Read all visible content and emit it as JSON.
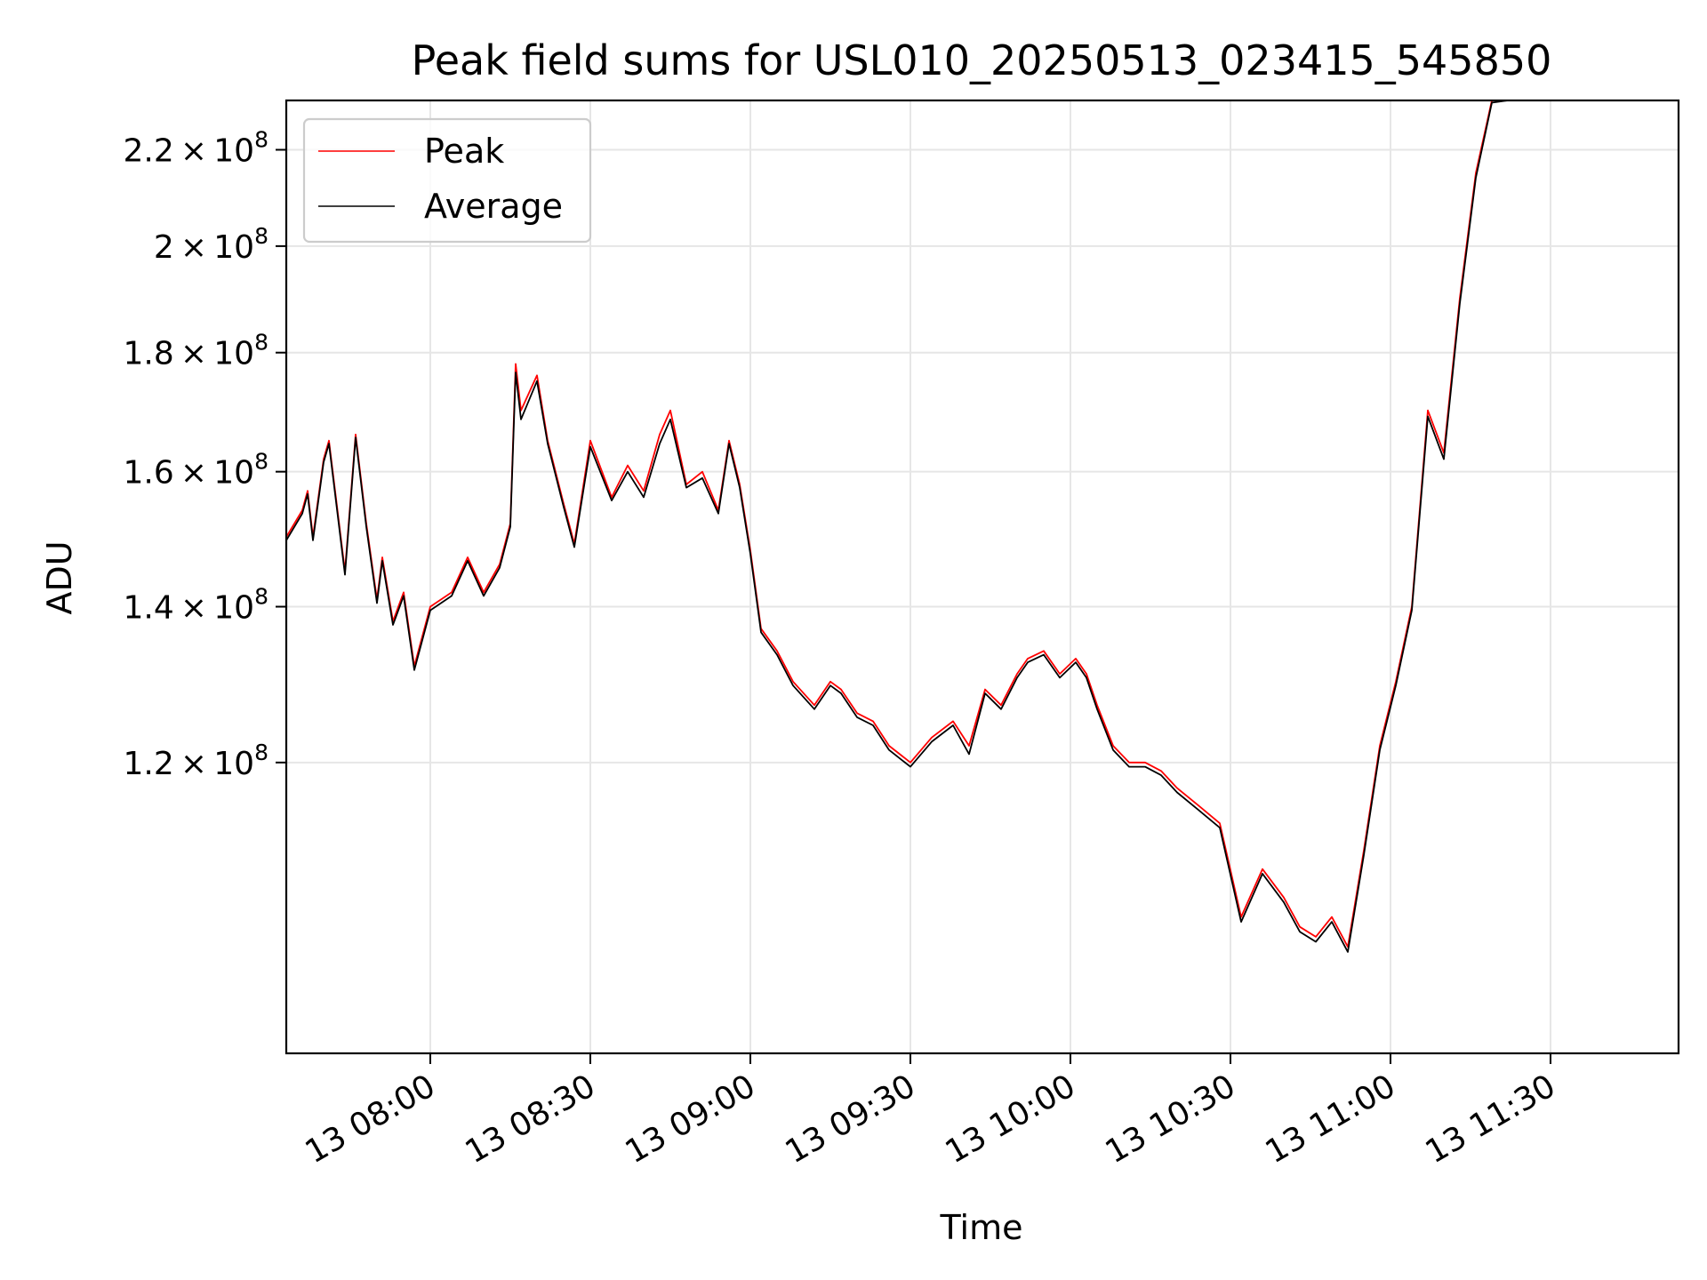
{
  "chart_data": {
    "type": "line",
    "title": "Peak field sums for USL010_20250513_023415_545850",
    "xlabel": "Time",
    "ylabel": "ADU",
    "yscale": "log",
    "grid": true,
    "legend_position": "upper left",
    "xlim": [
      "2025-05-13 07:33",
      "2025-05-13 11:54"
    ],
    "ylim": [
      90000000,
      231000000
    ],
    "x_ticks": [
      {
        "value": "2025-05-13 08:00",
        "label": "13 08:00"
      },
      {
        "value": "2025-05-13 08:30",
        "label": "13 08:30"
      },
      {
        "value": "2025-05-13 09:00",
        "label": "13 09:00"
      },
      {
        "value": "2025-05-13 09:30",
        "label": "13 09:30"
      },
      {
        "value": "2025-05-13 10:00",
        "label": "13 10:00"
      },
      {
        "value": "2025-05-13 10:30",
        "label": "13 10:30"
      },
      {
        "value": "2025-05-13 11:00",
        "label": "13 11:00"
      },
      {
        "value": "2025-05-13 11:30",
        "label": "13 11:30"
      }
    ],
    "y_ticks": [
      {
        "value": 120000000,
        "mantissa": "1.2",
        "exponent": "8"
      },
      {
        "value": 140000000,
        "mantissa": "1.4",
        "exponent": "8"
      },
      {
        "value": 160000000,
        "mantissa": "1.6",
        "exponent": "8"
      },
      {
        "value": 180000000,
        "mantissa": "1.8",
        "exponent": "8"
      },
      {
        "value": 200000000,
        "mantissa": "2",
        "exponent": "8"
      },
      {
        "value": 220000000,
        "mantissa": "2.2",
        "exponent": "8"
      }
    ],
    "tick_times_text": "",
    "series": [
      {
        "name": "Peak",
        "color": "#ff0000",
        "x": [
          "2025-05-13 07:33",
          "2025-05-13 07:36",
          "2025-05-13 07:37",
          "2025-05-13 07:38",
          "2025-05-13 07:40",
          "2025-05-13 07:41",
          "2025-05-13 07:44",
          "2025-05-13 07:46",
          "2025-05-13 07:48",
          "2025-05-13 07:50",
          "2025-05-13 07:51",
          "2025-05-13 07:53",
          "2025-05-13 07:55",
          "2025-05-13 07:57",
          "2025-05-13 08:00",
          "2025-05-13 08:04",
          "2025-05-13 08:07",
          "2025-05-13 08:10",
          "2025-05-13 08:13",
          "2025-05-13 08:15",
          "2025-05-13 08:16",
          "2025-05-13 08:17",
          "2025-05-13 08:20",
          "2025-05-13 08:22",
          "2025-05-13 08:25",
          "2025-05-13 08:27",
          "2025-05-13 08:30",
          "2025-05-13 08:34",
          "2025-05-13 08:37",
          "2025-05-13 08:40",
          "2025-05-13 08:43",
          "2025-05-13 08:45",
          "2025-05-13 08:48",
          "2025-05-13 08:51",
          "2025-05-13 08:54",
          "2025-05-13 08:56",
          "2025-05-13 08:58",
          "2025-05-13 09:00",
          "2025-05-13 09:02",
          "2025-05-13 09:05",
          "2025-05-13 09:08",
          "2025-05-13 09:12",
          "2025-05-13 09:15",
          "2025-05-13 09:17",
          "2025-05-13 09:20",
          "2025-05-13 09:23",
          "2025-05-13 09:26",
          "2025-05-13 09:30",
          "2025-05-13 09:34",
          "2025-05-13 09:38",
          "2025-05-13 09:41",
          "2025-05-13 09:44",
          "2025-05-13 09:47",
          "2025-05-13 09:50",
          "2025-05-13 09:52",
          "2025-05-13 09:55",
          "2025-05-13 09:58",
          "2025-05-13 10:01",
          "2025-05-13 10:03",
          "2025-05-13 10:05",
          "2025-05-13 10:08",
          "2025-05-13 10:11",
          "2025-05-13 10:14",
          "2025-05-13 10:17",
          "2025-05-13 10:20",
          "2025-05-13 10:24",
          "2025-05-13 10:28",
          "2025-05-13 10:32",
          "2025-05-13 10:36",
          "2025-05-13 10:40",
          "2025-05-13 10:43",
          "2025-05-13 10:46",
          "2025-05-13 10:49",
          "2025-05-13 10:52",
          "2025-05-13 10:55",
          "2025-05-13 10:58",
          "2025-05-13 11:01",
          "2025-05-13 11:04",
          "2025-05-13 11:07",
          "2025-05-13 11:10",
          "2025-05-13 11:13",
          "2025-05-13 11:16",
          "2025-05-13 11:19",
          "2025-05-13 11:22",
          "2025-05-13 11:24",
          "2025-05-13 11:27",
          "2025-05-13 11:30",
          "2025-05-13 11:33",
          "2025-05-13 11:35",
          "2025-05-13 11:37",
          "2025-05-13 11:38",
          "2025-05-13 11:40",
          "2025-05-13 11:42",
          "2025-05-13 11:44",
          "2025-05-13 11:46"
        ],
        "values": [
          150000000,
          154000000,
          157000000,
          150000000,
          162000000,
          165000000,
          145000000,
          166000000,
          152000000,
          141000000,
          147000000,
          138000000,
          142000000,
          132000000,
          140000000,
          142000000,
          147000000,
          142000000,
          146000000,
          152000000,
          178000000,
          170000000,
          176000000,
          165000000,
          155000000,
          149000000,
          165000000,
          156000000,
          161000000,
          157000000,
          166000000,
          170000000,
          158000000,
          160000000,
          154000000,
          165000000,
          158000000,
          148000000,
          137000000,
          134000000,
          130000000,
          127000000,
          130000000,
          129000000,
          126000000,
          125000000,
          122000000,
          120000000,
          123000000,
          125000000,
          122000000,
          129000000,
          127000000,
          131000000,
          133000000,
          134000000,
          131000000,
          133000000,
          131000000,
          127000000,
          122000000,
          120000000,
          120000000,
          119000000,
          117000000,
          115000000,
          113000000,
          103000000,
          108000000,
          105000000,
          102000000,
          101000000,
          103000000,
          100000000,
          110000000,
          122000000,
          130000000,
          140000000,
          170000000,
          163000000,
          190000000,
          215000000,
          231000000,
          231000000,
          231000000,
          231000000,
          231000000,
          231000000,
          231000000,
          231000000,
          231000000,
          231000000,
          231000000,
          231000000,
          231000000
        ]
      },
      {
        "name": "Average",
        "color": "#000000",
        "x": [
          "2025-05-13 07:33",
          "2025-05-13 07:36",
          "2025-05-13 07:37",
          "2025-05-13 07:38",
          "2025-05-13 07:40",
          "2025-05-13 07:41",
          "2025-05-13 07:44",
          "2025-05-13 07:46",
          "2025-05-13 07:48",
          "2025-05-13 07:50",
          "2025-05-13 07:51",
          "2025-05-13 07:53",
          "2025-05-13 07:55",
          "2025-05-13 07:57",
          "2025-05-13 08:00",
          "2025-05-13 08:04",
          "2025-05-13 08:07",
          "2025-05-13 08:10",
          "2025-05-13 08:13",
          "2025-05-13 08:15",
          "2025-05-13 08:16",
          "2025-05-13 08:17",
          "2025-05-13 08:20",
          "2025-05-13 08:22",
          "2025-05-13 08:25",
          "2025-05-13 08:27",
          "2025-05-13 08:30",
          "2025-05-13 08:34",
          "2025-05-13 08:37",
          "2025-05-13 08:40",
          "2025-05-13 08:43",
          "2025-05-13 08:45",
          "2025-05-13 08:48",
          "2025-05-13 08:51",
          "2025-05-13 08:54",
          "2025-05-13 08:56",
          "2025-05-13 08:58",
          "2025-05-13 09:00",
          "2025-05-13 09:02",
          "2025-05-13 09:05",
          "2025-05-13 09:08",
          "2025-05-13 09:12",
          "2025-05-13 09:15",
          "2025-05-13 09:17",
          "2025-05-13 09:20",
          "2025-05-13 09:23",
          "2025-05-13 09:26",
          "2025-05-13 09:30",
          "2025-05-13 09:34",
          "2025-05-13 09:38",
          "2025-05-13 09:41",
          "2025-05-13 09:44",
          "2025-05-13 09:47",
          "2025-05-13 09:50",
          "2025-05-13 09:52",
          "2025-05-13 09:55",
          "2025-05-13 09:58",
          "2025-05-13 10:01",
          "2025-05-13 10:03",
          "2025-05-13 10:05",
          "2025-05-13 10:08",
          "2025-05-13 10:11",
          "2025-05-13 10:14",
          "2025-05-13 10:17",
          "2025-05-13 10:20",
          "2025-05-13 10:24",
          "2025-05-13 10:28",
          "2025-05-13 10:32",
          "2025-05-13 10:36",
          "2025-05-13 10:40",
          "2025-05-13 10:43",
          "2025-05-13 10:46",
          "2025-05-13 10:49",
          "2025-05-13 10:52",
          "2025-05-13 10:55",
          "2025-05-13 10:58",
          "2025-05-13 11:01",
          "2025-05-13 11:04",
          "2025-05-13 11:07",
          "2025-05-13 11:10",
          "2025-05-13 11:13",
          "2025-05-13 11:16",
          "2025-05-13 11:19",
          "2025-05-13 11:22",
          "2025-05-13 11:24",
          "2025-05-13 11:27",
          "2025-05-13 11:30",
          "2025-05-13 11:33",
          "2025-05-13 11:35",
          "2025-05-13 11:37",
          "2025-05-13 11:38",
          "2025-05-13 11:40",
          "2025-05-13 11:42",
          "2025-05-13 11:44",
          "2025-05-13 11:46"
        ],
        "values": [
          149500000,
          153500000,
          156500000,
          149500000,
          161500000,
          164500000,
          144500000,
          165500000,
          151500000,
          140500000,
          146500000,
          137500000,
          141500000,
          131500000,
          139500000,
          141500000,
          146500000,
          141500000,
          145500000,
          151500000,
          176500000,
          168500000,
          175000000,
          164500000,
          154500000,
          148500000,
          164000000,
          155500000,
          160000000,
          156000000,
          164500000,
          168500000,
          157500000,
          159000000,
          153500000,
          164500000,
          157500000,
          147500000,
          136500000,
          133500000,
          129500000,
          126500000,
          129500000,
          128500000,
          125500000,
          124500000,
          121500000,
          119500000,
          122500000,
          124500000,
          121000000,
          128500000,
          126500000,
          130500000,
          132500000,
          133500000,
          130500000,
          132500000,
          130500000,
          126500000,
          121500000,
          119500000,
          119500000,
          118500000,
          116500000,
          114500000,
          112500000,
          102500000,
          107500000,
          104500000,
          101500000,
          100500000,
          102500000,
          99500000,
          109500000,
          121500000,
          129500000,
          139500000,
          169000000,
          162000000,
          189000000,
          214000000,
          230500000,
          231000000,
          231000000,
          231000000,
          231000000,
          231000000,
          231000000,
          231000000,
          231000000,
          231000000,
          231000000,
          231000000,
          231000000
        ]
      }
    ]
  }
}
